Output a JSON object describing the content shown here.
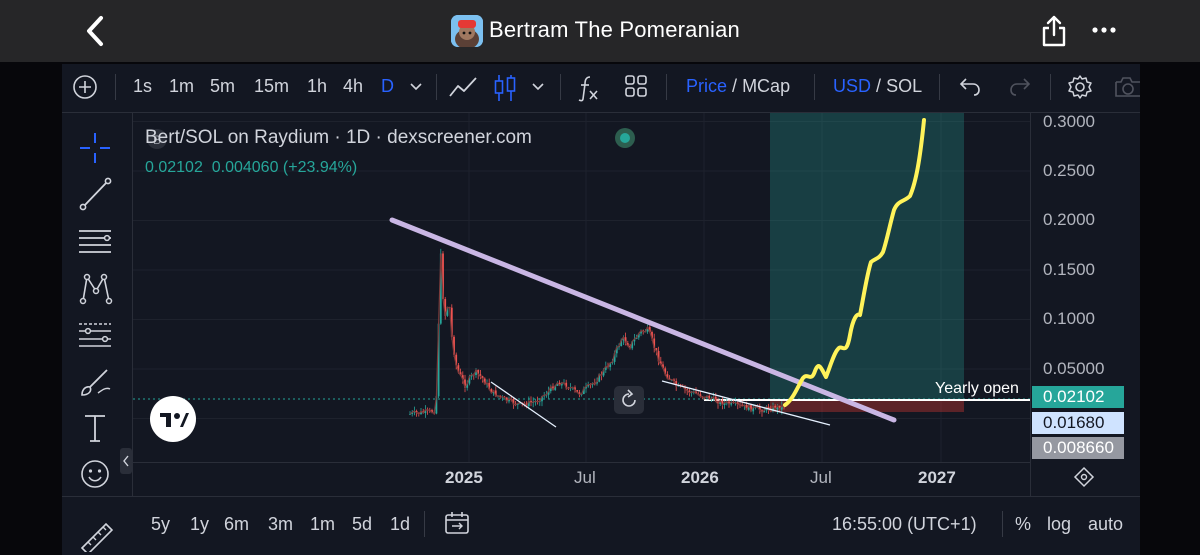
{
  "header": {
    "title": "Bertram The Pomeranian",
    "back_icon": "chevron-left-icon",
    "share_icon": "share-icon",
    "more_icon": "more-icon"
  },
  "toolbar": {
    "intervals": [
      "1s",
      "1m",
      "5m",
      "15m",
      "1h",
      "4h",
      "D"
    ],
    "active_interval": "D",
    "price_label": "Price",
    "mcap_label": "MCap",
    "usd_label": "USD",
    "sol_label": "SOL",
    "divider": "/",
    "accent": "#2962ff"
  },
  "legend": {
    "title": "Bert/SOL on Raydium · 1D · dexscreener.com",
    "symbol_letter": "B",
    "last": "0.02102",
    "change": "0.004060",
    "change_pct": "(+23.94%)",
    "up_color": "#26a69a"
  },
  "chart": {
    "y_ticks": [
      "0.3000",
      "0.2500",
      "0.2000",
      "0.1500",
      "0.1000",
      "0.05000"
    ],
    "x_ticks": [
      "2025",
      "Jul",
      "2026",
      "Jul",
      "2027"
    ],
    "yearly_open_label": "Yearly open",
    "price_labels": [
      {
        "value": "0.02102",
        "bg": "#26a69a",
        "color": "#ffffff"
      },
      {
        "value": "0.01680",
        "bg": "#cfe3ff",
        "color": "#131722"
      },
      {
        "value": "0.008660",
        "bg": "#9598a1",
        "color": "#ffffff"
      }
    ],
    "projection_color": "#fff35a",
    "trendline_color": "#c9b6e4"
  },
  "bottom": {
    "ranges": [
      "5y",
      "1y",
      "6m",
      "3m",
      "1m",
      "5d",
      "1d"
    ],
    "time": "16:55:00 (UTC+1)",
    "pct": "%",
    "log": "log",
    "auto": "auto"
  }
}
